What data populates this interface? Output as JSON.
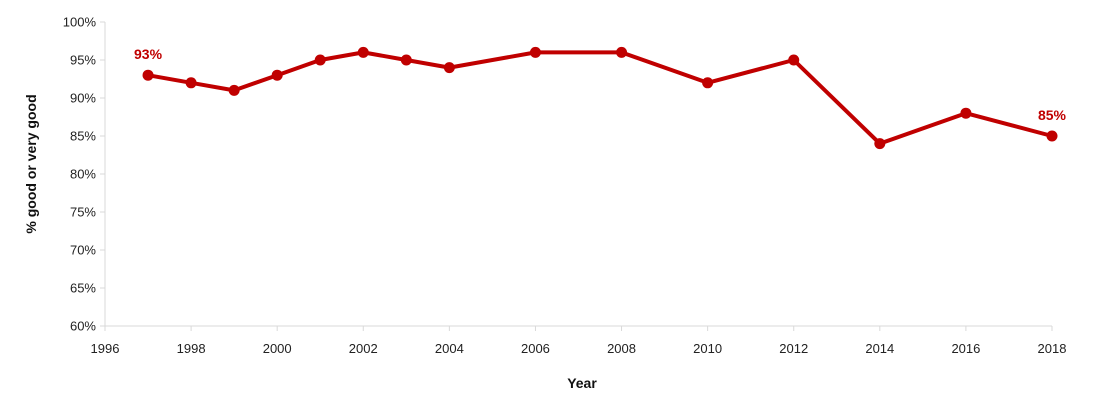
{
  "chart_data": {
    "type": "line",
    "title": "",
    "xlabel": "Year",
    "ylabel": "% good or very good",
    "xlim": [
      1996,
      2018
    ],
    "ylim": [
      60,
      100
    ],
    "x_ticks": [
      1996,
      1998,
      2000,
      2002,
      2004,
      2006,
      2008,
      2010,
      2012,
      2014,
      2016,
      2018
    ],
    "x_tick_labels": [
      "1996",
      "1998",
      "2000",
      "2002",
      "2004",
      "2006",
      "2008",
      "2010",
      "2012",
      "2014",
      "2016",
      "2018"
    ],
    "y_ticks": [
      60,
      65,
      70,
      75,
      80,
      85,
      90,
      95,
      100
    ],
    "y_tick_labels": [
      "60%",
      "65%",
      "70%",
      "75%",
      "80%",
      "85%",
      "90%",
      "95%",
      "100%"
    ],
    "grid": false,
    "legend": "none",
    "series": [
      {
        "color": "#C00000",
        "x": [
          1997,
          1998,
          1999,
          2000,
          2001,
          2002,
          2003,
          2004,
          2006,
          2008,
          2010,
          2012,
          2014,
          2016,
          2018
        ],
        "values": [
          93,
          92,
          91,
          93,
          95,
          96,
          95,
          94,
          96,
          96,
          92,
          95,
          84,
          88,
          85
        ]
      }
    ],
    "annotations": [
      {
        "x": 1997,
        "y": 93,
        "text": "93%",
        "position": "above"
      },
      {
        "x": 2018,
        "y": 85,
        "text": "85%",
        "position": "above"
      }
    ]
  }
}
